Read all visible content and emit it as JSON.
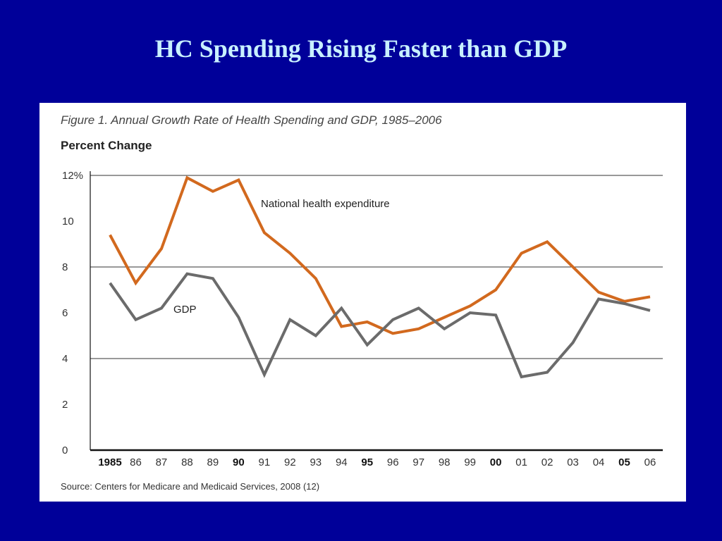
{
  "slide": {
    "title": "HC Spending Rising Faster than GDP",
    "background": "#000099",
    "title_color": "#c8f0ff"
  },
  "chart_data": {
    "type": "line",
    "caption": "Figure 1. Annual Growth Rate of Health Spending and GDP, 1985–2006",
    "ylabel": "Percent Change",
    "xlabel": "",
    "ylim": [
      0,
      12
    ],
    "y_ticks": [
      0,
      2,
      4,
      6,
      8,
      10,
      12
    ],
    "y_top_tick_label": "12%",
    "gridlines_at": [
      4,
      8,
      12
    ],
    "categories": [
      "1985",
      "86",
      "87",
      "88",
      "89",
      "90",
      "91",
      "92",
      "93",
      "94",
      "95",
      "96",
      "97",
      "98",
      "99",
      "00",
      "01",
      "02",
      "03",
      "04",
      "05",
      "06"
    ],
    "bold_categories": [
      "1985",
      "90",
      "95",
      "00",
      "05"
    ],
    "series": [
      {
        "name": "National health expenditure",
        "color": "#d2691e",
        "values": [
          9.4,
          7.3,
          8.8,
          11.9,
          11.3,
          11.8,
          9.5,
          8.6,
          7.5,
          5.4,
          5.6,
          5.1,
          5.3,
          5.8,
          6.3,
          7.0,
          8.6,
          9.1,
          8.0,
          6.9,
          6.5,
          6.7
        ]
      },
      {
        "name": "GDP",
        "color": "#6b6b6b",
        "values": [
          7.3,
          5.7,
          6.2,
          7.7,
          7.5,
          5.8,
          3.3,
          5.7,
          5.0,
          6.2,
          4.6,
          5.7,
          6.2,
          5.3,
          6.0,
          5.9,
          3.2,
          3.4,
          4.7,
          6.6,
          6.4,
          6.1
        ]
      }
    ],
    "source": "Source: Centers for Medicare and Medicaid Services, 2008 (12)"
  }
}
